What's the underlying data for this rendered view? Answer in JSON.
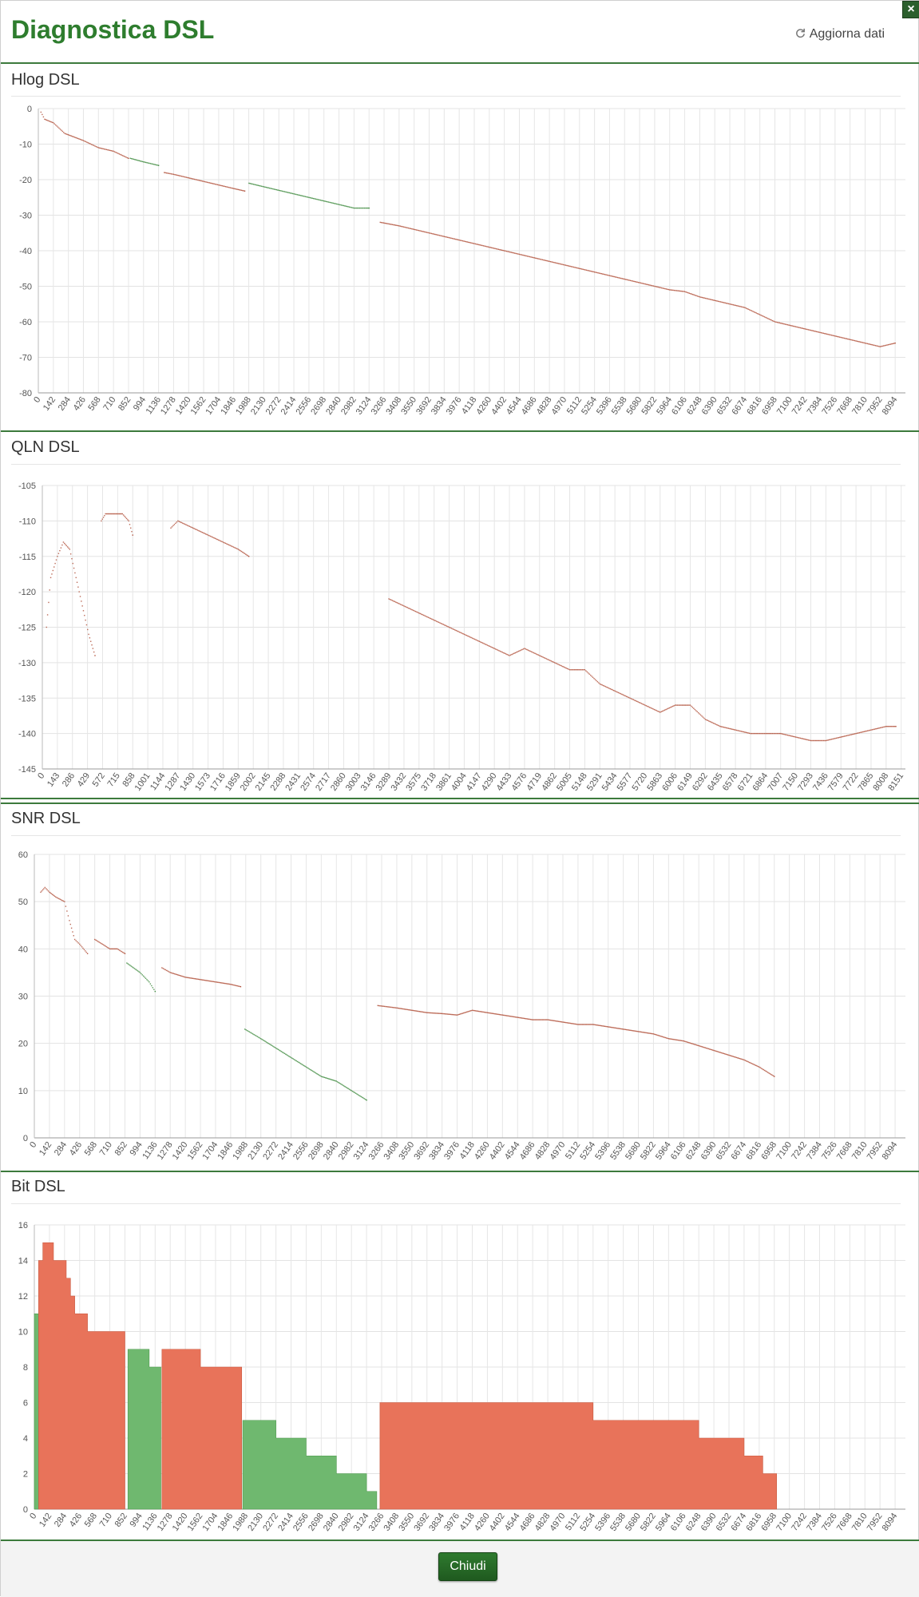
{
  "header": {
    "title": "Diagnostica DSL",
    "refresh_label": "Aggiorna dati",
    "close_symbol": "×",
    "refresh_icon": "refresh-icon"
  },
  "footer": {
    "close_label": "Chiudi"
  },
  "colors": {
    "red": "#e8735a",
    "red_dark": "#b0503a",
    "green": "#6fb86f",
    "green_dark": "#3d8a3d",
    "accent": "#2e7d2e"
  },
  "chart_data": [
    {
      "id": "hlog",
      "type": "scatter",
      "title": "Hlog DSL",
      "ylim": [
        -80,
        0
      ],
      "yticks": [
        0,
        -10,
        -20,
        -30,
        -40,
        -50,
        -60,
        -70,
        -80
      ],
      "xlim": [
        0,
        8191
      ],
      "xtick_step": 142,
      "series": [
        {
          "color": "red",
          "points": [
            [
              25,
              -1
            ],
            [
              60,
              -3
            ],
            [
              142,
              -4
            ],
            [
              250,
              -7
            ],
            [
              426,
              -9
            ],
            [
              568,
              -11
            ],
            [
              710,
              -12
            ],
            [
              852,
              -14
            ]
          ]
        },
        {
          "color": "green",
          "points": [
            [
              870,
              -14
            ],
            [
              994,
              -15
            ],
            [
              1136,
              -16
            ]
          ]
        },
        {
          "color": "red",
          "points": [
            [
              1190,
              -18
            ],
            [
              1278,
              -18.5
            ],
            [
              1420,
              -19.5
            ],
            [
              1562,
              -20.5
            ],
            [
              1704,
              -21.5
            ],
            [
              1846,
              -22.5
            ],
            [
              1950,
              -23.2
            ]
          ]
        },
        {
          "color": "green",
          "points": [
            [
              1990,
              -21
            ],
            [
              2130,
              -22
            ],
            [
              2272,
              -23
            ],
            [
              2414,
              -24
            ],
            [
              2556,
              -25
            ],
            [
              2698,
              -26
            ],
            [
              2840,
              -27
            ],
            [
              2982,
              -28
            ],
            [
              3124,
              -28
            ]
          ]
        },
        {
          "color": "red",
          "points": [
            [
              3230,
              -32
            ],
            [
              3408,
              -33
            ],
            [
              3550,
              -34
            ],
            [
              3692,
              -35
            ],
            [
              3834,
              -36
            ],
            [
              3976,
              -37
            ],
            [
              4118,
              -38
            ],
            [
              4260,
              -39
            ],
            [
              4402,
              -40
            ],
            [
              4544,
              -41
            ],
            [
              4686,
              -42
            ],
            [
              4828,
              -43
            ],
            [
              4970,
              -44
            ],
            [
              5112,
              -45
            ],
            [
              5254,
              -46
            ],
            [
              5396,
              -47
            ],
            [
              5538,
              -48
            ],
            [
              5680,
              -49
            ],
            [
              5822,
              -50
            ],
            [
              5964,
              -51
            ],
            [
              6106,
              -51.5
            ],
            [
              6248,
              -53
            ],
            [
              6390,
              -54
            ],
            [
              6532,
              -55
            ],
            [
              6674,
              -56
            ],
            [
              6816,
              -58
            ],
            [
              6958,
              -60
            ],
            [
              7100,
              -61
            ],
            [
              7242,
              -62
            ],
            [
              7384,
              -63
            ],
            [
              7526,
              -64
            ],
            [
              7668,
              -65
            ],
            [
              7810,
              -66
            ],
            [
              7952,
              -67
            ],
            [
              8094,
              -66
            ]
          ]
        }
      ]
    },
    {
      "id": "qln",
      "type": "scatter",
      "title": "QLN DSL",
      "ylim": [
        -145,
        -105
      ],
      "yticks": [
        -105,
        -110,
        -115,
        -120,
        -125,
        -130,
        -135,
        -140,
        -145
      ],
      "xlim": [
        0,
        8191
      ],
      "xtick_step": 143,
      "xtick_last": 8151,
      "series": [
        {
          "color": "red",
          "points": [
            [
              40,
              -125
            ],
            [
              80,
              -118
            ],
            [
              143,
              -115
            ],
            [
              200,
              -113
            ],
            [
              260,
              -114
            ],
            [
              320,
              -118
            ],
            [
              380,
              -122
            ],
            [
              440,
              -126
            ],
            [
              500,
              -129
            ]
          ]
        },
        {
          "color": "red",
          "points": [
            [
              560,
              -110
            ],
            [
              600,
              -109
            ],
            [
              680,
              -109
            ],
            [
              760,
              -109
            ],
            [
              820,
              -110
            ],
            [
              858,
              -112
            ]
          ]
        },
        {
          "color": "red",
          "points": [
            [
              1220,
              -111
            ],
            [
              1287,
              -110
            ],
            [
              1430,
              -111
            ],
            [
              1573,
              -112
            ],
            [
              1716,
              -113
            ],
            [
              1859,
              -114
            ],
            [
              1960,
              -115
            ]
          ]
        },
        {
          "color": "red",
          "points": [
            [
              3289,
              -121
            ],
            [
              3432,
              -122
            ],
            [
              3575,
              -123
            ],
            [
              3718,
              -124
            ],
            [
              3861,
              -125
            ],
            [
              4004,
              -126
            ],
            [
              4147,
              -127
            ],
            [
              4290,
              -128
            ],
            [
              4433,
              -129
            ],
            [
              4576,
              -128
            ],
            [
              4719,
              -129
            ],
            [
              4862,
              -130
            ],
            [
              5005,
              -131
            ],
            [
              5148,
              -131
            ],
            [
              5291,
              -133
            ],
            [
              5434,
              -134
            ],
            [
              5577,
              -135
            ],
            [
              5720,
              -136
            ],
            [
              5863,
              -137
            ],
            [
              6006,
              -136
            ],
            [
              6149,
              -136
            ],
            [
              6292,
              -138
            ],
            [
              6435,
              -139
            ],
            [
              6578,
              -139.5
            ],
            [
              6721,
              -140
            ],
            [
              6864,
              -140
            ],
            [
              7007,
              -140
            ],
            [
              7150,
              -140.5
            ],
            [
              7293,
              -141
            ],
            [
              7436,
              -141
            ],
            [
              7579,
              -140.5
            ],
            [
              7722,
              -140
            ],
            [
              7865,
              -139.5
            ],
            [
              8008,
              -139
            ],
            [
              8100,
              -139
            ]
          ]
        }
      ]
    },
    {
      "id": "snr",
      "type": "scatter",
      "title": "SNR DSL",
      "ylim": [
        0,
        60
      ],
      "yticks": [
        60,
        50,
        40,
        30,
        20,
        10,
        0
      ],
      "xlim": [
        0,
        8191
      ],
      "xtick_step": 142,
      "series": [
        {
          "color": "red",
          "points": [
            [
              60,
              52
            ],
            [
              100,
              53
            ],
            [
              142,
              52
            ],
            [
              200,
              51
            ],
            [
              284,
              50
            ],
            [
              330,
              46
            ],
            [
              380,
              42
            ],
            [
              426,
              41
            ],
            [
              500,
              39
            ]
          ]
        },
        {
          "color": "red",
          "points": [
            [
              568,
              42
            ],
            [
              640,
              41
            ],
            [
              710,
              40
            ],
            [
              780,
              40
            ],
            [
              852,
              39
            ]
          ]
        },
        {
          "color": "green",
          "points": [
            [
              870,
              37
            ],
            [
              994,
              35
            ],
            [
              1080,
              33
            ],
            [
              1136,
              31
            ]
          ]
        },
        {
          "color": "red",
          "points": [
            [
              1200,
              36
            ],
            [
              1278,
              35
            ],
            [
              1420,
              34
            ],
            [
              1562,
              33.5
            ],
            [
              1704,
              33
            ],
            [
              1846,
              32.5
            ],
            [
              1940,
              32
            ]
          ]
        },
        {
          "color": "green",
          "points": [
            [
              1980,
              23
            ],
            [
              2130,
              21
            ],
            [
              2272,
              19
            ],
            [
              2414,
              17
            ],
            [
              2556,
              15
            ],
            [
              2698,
              13
            ],
            [
              2840,
              12
            ],
            [
              2982,
              10
            ],
            [
              3124,
              8
            ]
          ]
        },
        {
          "color": "red",
          "points": [
            [
              3230,
              28
            ],
            [
              3408,
              27.5
            ],
            [
              3550,
              27
            ],
            [
              3692,
              26.5
            ],
            [
              3834,
              26.3
            ],
            [
              3976,
              26
            ],
            [
              4118,
              27
            ],
            [
              4260,
              26.5
            ],
            [
              4402,
              26
            ],
            [
              4544,
              25.5
            ],
            [
              4686,
              25
            ],
            [
              4828,
              25
            ],
            [
              4970,
              24.5
            ],
            [
              5112,
              24
            ],
            [
              5254,
              24
            ],
            [
              5396,
              23.5
            ],
            [
              5538,
              23
            ],
            [
              5680,
              22.5
            ],
            [
              5822,
              22
            ],
            [
              5964,
              21
            ],
            [
              6106,
              20.5
            ],
            [
              6248,
              19.5
            ],
            [
              6390,
              18.5
            ],
            [
              6532,
              17.5
            ],
            [
              6674,
              16.5
            ],
            [
              6816,
              15
            ],
            [
              6958,
              13
            ]
          ]
        }
      ]
    },
    {
      "id": "bit",
      "type": "area",
      "title": "Bit DSL",
      "ylim": [
        0,
        16
      ],
      "yticks": [
        16,
        14,
        12,
        10,
        8,
        6,
        4,
        2,
        0
      ],
      "xlim": [
        0,
        8191
      ],
      "xtick_step": 142,
      "series": [
        {
          "color": "green",
          "steps": [
            [
              0,
              0
            ],
            [
              0,
              11
            ],
            [
              40,
              11
            ],
            [
              40,
              0
            ]
          ]
        },
        {
          "color": "red",
          "steps": [
            [
              40,
              14
            ],
            [
              80,
              15
            ],
            [
              180,
              15
            ],
            [
              180,
              14
            ],
            [
              280,
              14
            ],
            [
              300,
              13
            ],
            [
              340,
              12
            ],
            [
              380,
              11
            ],
            [
              480,
              11
            ],
            [
              500,
              10
            ],
            [
              852,
              10
            ],
            [
              852,
              0
            ]
          ]
        },
        {
          "color": "green",
          "steps": [
            [
              880,
              9
            ],
            [
              1080,
              9
            ],
            [
              1080,
              8
            ],
            [
              1190,
              8
            ],
            [
              1190,
              0
            ]
          ]
        },
        {
          "color": "red",
          "steps": [
            [
              1200,
              9
            ],
            [
              1278,
              9
            ],
            [
              1562,
              9
            ],
            [
              1562,
              8
            ],
            [
              1950,
              8
            ],
            [
              1950,
              0
            ]
          ]
        },
        {
          "color": "green",
          "steps": [
            [
              1960,
              5
            ],
            [
              2272,
              5
            ],
            [
              2272,
              4
            ],
            [
              2556,
              4
            ],
            [
              2556,
              3
            ],
            [
              2840,
              3
            ],
            [
              2840,
              2
            ],
            [
              3124,
              2
            ],
            [
              3124,
              1
            ],
            [
              3220,
              1
            ],
            [
              3220,
              0
            ]
          ]
        },
        {
          "color": "red",
          "steps": [
            [
              3250,
              6
            ],
            [
              4260,
              6
            ],
            [
              4260,
              6
            ],
            [
              4686,
              6
            ],
            [
              4686,
              6
            ],
            [
              5254,
              5
            ],
            [
              5822,
              5
            ],
            [
              6106,
              5
            ],
            [
              6248,
              4
            ],
            [
              6674,
              4
            ],
            [
              6674,
              3
            ],
            [
              6816,
              3
            ],
            [
              6850,
              2
            ],
            [
              6980,
              2
            ],
            [
              6980,
              0
            ]
          ]
        }
      ]
    }
  ]
}
